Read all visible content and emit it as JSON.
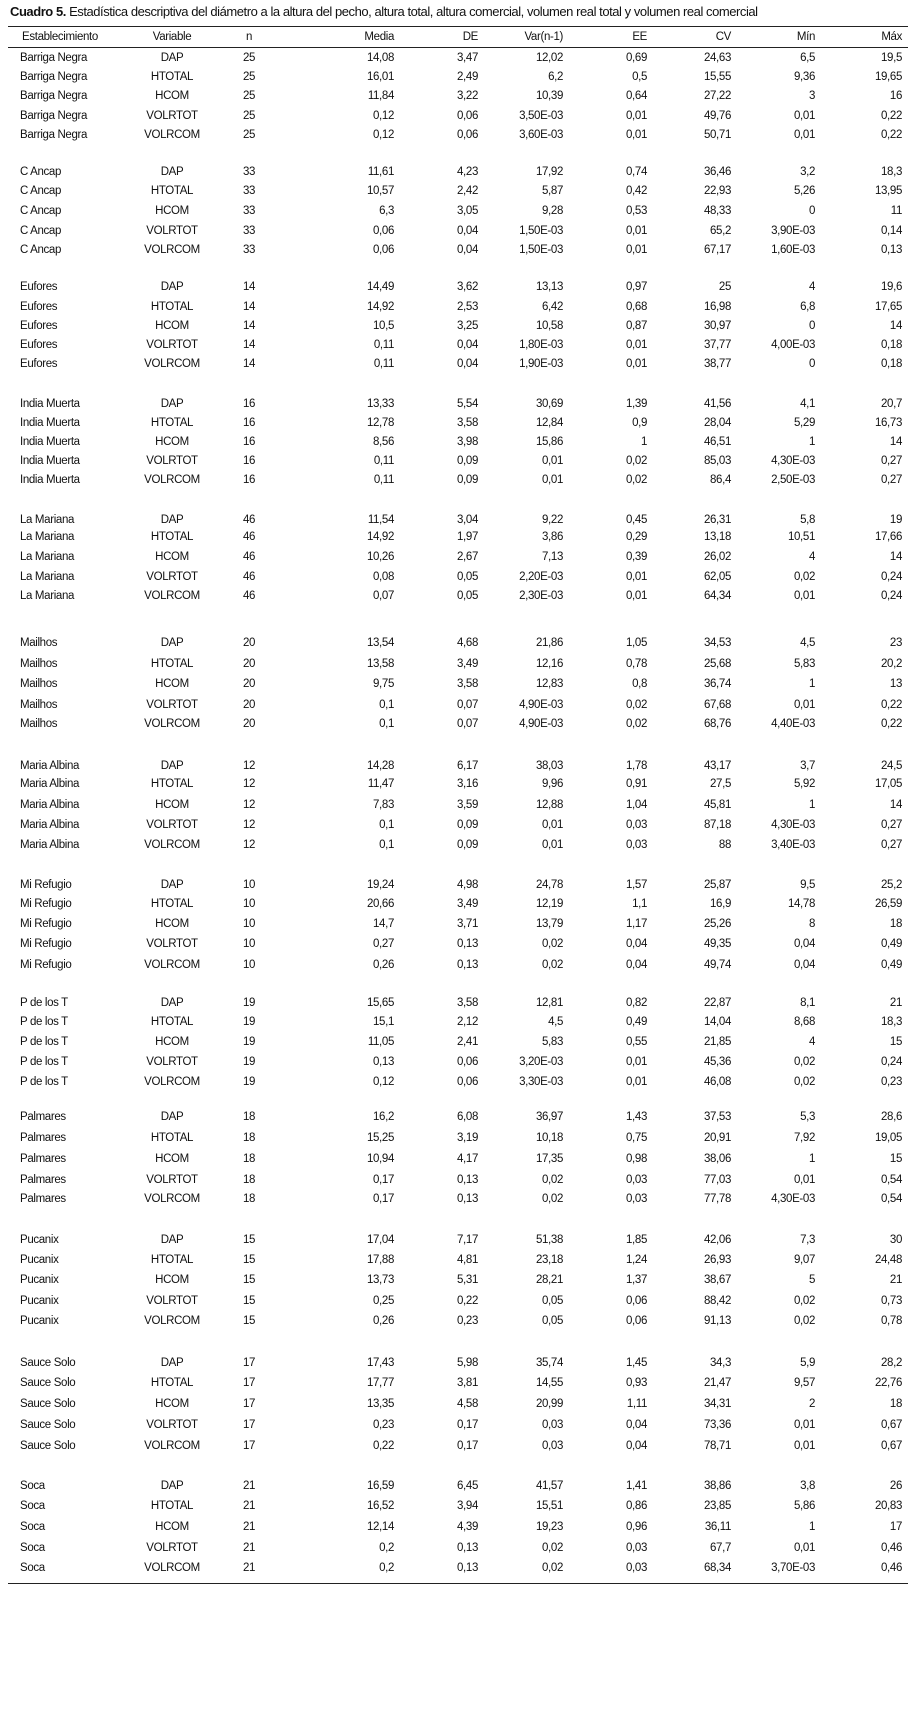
{
  "caption": {
    "label": "Cuadro 5.",
    "text": " Estadística descriptiva del diámetro a la altura del pecho, altura total, altura comercial, volumen real total y volumen real comercial"
  },
  "table": {
    "columns": [
      "Establecimiento",
      "Variable",
      "n",
      "Media",
      "DE",
      "Var(n-1)",
      "EE",
      "CV",
      "Mín",
      "Máx"
    ],
    "groups": [
      {
        "establecimiento": "Barriga Negra",
        "n": "25",
        "rows": [
          [
            "DAP",
            "14,08",
            "3,47",
            "12,02",
            "0,69",
            "24,63",
            "6,5",
            "19,5"
          ],
          [
            "HTOTAL",
            "16,01",
            "2,49",
            "6,2",
            "0,5",
            "15,55",
            "9,36",
            "19,65"
          ],
          [
            "HCOM",
            "11,84",
            "3,22",
            "10,39",
            "0,64",
            "27,22",
            "3",
            "16"
          ],
          [
            "VOLRTOT",
            "0,12",
            "0,06",
            "3,50E-03",
            "0,01",
            "49,76",
            "0,01",
            "0,22"
          ],
          [
            "VOLRCOM",
            "0,12",
            "0,06",
            "3,60E-03",
            "0,01",
            "50,71",
            "0,01",
            "0,22"
          ]
        ]
      },
      {
        "establecimiento": "C Ancap",
        "n": "33",
        "rows": [
          [
            "DAP",
            "11,61",
            "4,23",
            "17,92",
            "0,74",
            "36,46",
            "3,2",
            "18,3"
          ],
          [
            "HTOTAL",
            "10,57",
            "2,42",
            "5,87",
            "0,42",
            "22,93",
            "5,26",
            "13,95"
          ],
          [
            "HCOM",
            "6,3",
            "3,05",
            "9,28",
            "0,53",
            "48,33",
            "0",
            "11"
          ],
          [
            "VOLRTOT",
            "0,06",
            "0,04",
            "1,50E-03",
            "0,01",
            "65,2",
            "3,90E-03",
            "0,14"
          ],
          [
            "VOLRCOM",
            "0,06",
            "0,04",
            "1,50E-03",
            "0,01",
            "67,17",
            "1,60E-03",
            "0,13"
          ]
        ]
      },
      {
        "establecimiento": "Eufores",
        "n": "14",
        "rows": [
          [
            "DAP",
            "14,49",
            "3,62",
            "13,13",
            "0,97",
            "25",
            "4",
            "19,6"
          ],
          [
            "HTOTAL",
            "14,92",
            "2,53",
            "6,42",
            "0,68",
            "16,98",
            "6,8",
            "17,65"
          ],
          [
            "HCOM",
            "10,5",
            "3,25",
            "10,58",
            "0,87",
            "30,97",
            "0",
            "14"
          ],
          [
            "VOLRTOT",
            "0,11",
            "0,04",
            "1,80E-03",
            "0,01",
            "37,77",
            "4,00E-03",
            "0,18"
          ],
          [
            "VOLRCOM",
            "0,11",
            "0,04",
            "1,90E-03",
            "0,01",
            "38,77",
            "0",
            "0,18"
          ]
        ]
      },
      {
        "establecimiento": "India Muerta",
        "n": "16",
        "rows": [
          [
            "DAP",
            "13,33",
            "5,54",
            "30,69",
            "1,39",
            "41,56",
            "4,1",
            "20,7"
          ],
          [
            "HTOTAL",
            "12,78",
            "3,58",
            "12,84",
            "0,9",
            "28,04",
            "5,29",
            "16,73"
          ],
          [
            "HCOM",
            "8,56",
            "3,98",
            "15,86",
            "1",
            "46,51",
            "1",
            "14"
          ],
          [
            "VOLRTOT",
            "0,11",
            "0,09",
            "0,01",
            "0,02",
            "85,03",
            "4,30E-03",
            "0,27"
          ],
          [
            "VOLRCOM",
            "0,11",
            "0,09",
            "0,01",
            "0,02",
            "86,4",
            "2,50E-03",
            "0,27"
          ]
        ]
      },
      {
        "establecimiento": "La Mariana",
        "n": "46",
        "rows": [
          [
            "DAP",
            "11,54",
            "3,04",
            "9,22",
            "0,45",
            "26,31",
            "5,8",
            "19"
          ],
          [
            "HTOTAL",
            "14,92",
            "1,97",
            "3,86",
            "0,29",
            "13,18",
            "10,51",
            "17,66"
          ],
          [
            "HCOM",
            "10,26",
            "2,67",
            "7,13",
            "0,39",
            "26,02",
            "4",
            "14"
          ],
          [
            "VOLRTOT",
            "0,08",
            "0,05",
            "2,20E-03",
            "0,01",
            "62,05",
            "0,02",
            "0,24"
          ],
          [
            "VOLRCOM",
            "0,07",
            "0,05",
            "2,30E-03",
            "0,01",
            "64,34",
            "0,01",
            "0,24"
          ]
        ]
      },
      {
        "establecimiento": "Mailhos",
        "n": "20",
        "rows": [
          [
            "DAP",
            "13,54",
            "4,68",
            "21,86",
            "1,05",
            "34,53",
            "4,5",
            "23"
          ],
          [
            "HTOTAL",
            "13,58",
            "3,49",
            "12,16",
            "0,78",
            "25,68",
            "5,83",
            "20,2"
          ],
          [
            "HCOM",
            "9,75",
            "3,58",
            "12,83",
            "0,8",
            "36,74",
            "1",
            "13"
          ],
          [
            "VOLRTOT",
            "0,1",
            "0,07",
            "4,90E-03",
            "0,02",
            "67,68",
            "0,01",
            "0,22"
          ],
          [
            "VOLRCOM",
            "0,1",
            "0,07",
            "4,90E-03",
            "0,02",
            "68,76",
            "4,40E-03",
            "0,22"
          ]
        ]
      },
      {
        "establecimiento": "Maria Albina",
        "n": "12",
        "rows": [
          [
            "DAP",
            "14,28",
            "6,17",
            "38,03",
            "1,78",
            "43,17",
            "3,7",
            "24,5"
          ],
          [
            "HTOTAL",
            "11,47",
            "3,16",
            "9,96",
            "0,91",
            "27,5",
            "5,92",
            "17,05"
          ],
          [
            "HCOM",
            "7,83",
            "3,59",
            "12,88",
            "1,04",
            "45,81",
            "1",
            "14"
          ],
          [
            "VOLRTOT",
            "0,1",
            "0,09",
            "0,01",
            "0,03",
            "87,18",
            "4,30E-03",
            "0,27"
          ],
          [
            "VOLRCOM",
            "0,1",
            "0,09",
            "0,01",
            "0,03",
            "88",
            "3,40E-03",
            "0,27"
          ]
        ]
      },
      {
        "establecimiento": "Mi Refugio",
        "n": "10",
        "rows": [
          [
            "DAP",
            "19,24",
            "4,98",
            "24,78",
            "1,57",
            "25,87",
            "9,5",
            "25,2"
          ],
          [
            "HTOTAL",
            "20,66",
            "3,49",
            "12,19",
            "1,1",
            "16,9",
            "14,78",
            "26,59"
          ],
          [
            "HCOM",
            "14,7",
            "3,71",
            "13,79",
            "1,17",
            "25,26",
            "8",
            "18"
          ],
          [
            "VOLRTOT",
            "0,27",
            "0,13",
            "0,02",
            "0,04",
            "49,35",
            "0,04",
            "0,49"
          ],
          [
            "VOLRCOM",
            "0,26",
            "0,13",
            "0,02",
            "0,04",
            "49,74",
            "0,04",
            "0,49"
          ]
        ]
      },
      {
        "establecimiento": "P de los T",
        "n": "19",
        "rows": [
          [
            "DAP",
            "15,65",
            "3,58",
            "12,81",
            "0,82",
            "22,87",
            "8,1",
            "21"
          ],
          [
            "HTOTAL",
            "15,1",
            "2,12",
            "4,5",
            "0,49",
            "14,04",
            "8,68",
            "18,3"
          ],
          [
            "HCOM",
            "11,05",
            "2,41",
            "5,83",
            "0,55",
            "21,85",
            "4",
            "15"
          ],
          [
            "VOLRTOT",
            "0,13",
            "0,06",
            "3,20E-03",
            "0,01",
            "45,36",
            "0,02",
            "0,24"
          ],
          [
            "VOLRCOM",
            "0,12",
            "0,06",
            "3,30E-03",
            "0,01",
            "46,08",
            "0,02",
            "0,23"
          ]
        ]
      },
      {
        "establecimiento": "Palmares",
        "n": "18",
        "rows": [
          [
            "DAP",
            "16,2",
            "6,08",
            "36,97",
            "1,43",
            "37,53",
            "5,3",
            "28,6"
          ],
          [
            "HTOTAL",
            "15,25",
            "3,19",
            "10,18",
            "0,75",
            "20,91",
            "7,92",
            "19,05"
          ],
          [
            "HCOM",
            "10,94",
            "4,17",
            "17,35",
            "0,98",
            "38,06",
            "1",
            "15"
          ],
          [
            "VOLRTOT",
            "0,17",
            "0,13",
            "0,02",
            "0,03",
            "77,03",
            "0,01",
            "0,54"
          ],
          [
            "VOLRCOM",
            "0,17",
            "0,13",
            "0,02",
            "0,03",
            "77,78",
            "4,30E-03",
            "0,54"
          ]
        ]
      },
      {
        "establecimiento": "Pucanix",
        "n": "15",
        "rows": [
          [
            "DAP",
            "17,04",
            "7,17",
            "51,38",
            "1,85",
            "42,06",
            "7,3",
            "30"
          ],
          [
            "HTOTAL",
            "17,88",
            "4,81",
            "23,18",
            "1,24",
            "26,93",
            "9,07",
            "24,48"
          ],
          [
            "HCOM",
            "13,73",
            "5,31",
            "28,21",
            "1,37",
            "38,67",
            "5",
            "21"
          ],
          [
            "VOLRTOT",
            "0,25",
            "0,22",
            "0,05",
            "0,06",
            "88,42",
            "0,02",
            "0,73"
          ],
          [
            "VOLRCOM",
            "0,26",
            "0,23",
            "0,05",
            "0,06",
            "91,13",
            "0,02",
            "0,78"
          ]
        ]
      },
      {
        "establecimiento": "Sauce Solo",
        "n": "17",
        "rows": [
          [
            "DAP",
            "17,43",
            "5,98",
            "35,74",
            "1,45",
            "34,3",
            "5,9",
            "28,2"
          ],
          [
            "HTOTAL",
            "17,77",
            "3,81",
            "14,55",
            "0,93",
            "21,47",
            "9,57",
            "22,76"
          ],
          [
            "HCOM",
            "13,35",
            "4,58",
            "20,99",
            "1,11",
            "34,31",
            "2",
            "18"
          ],
          [
            "VOLRTOT",
            "0,23",
            "0,17",
            "0,03",
            "0,04",
            "73,36",
            "0,01",
            "0,67"
          ],
          [
            "VOLRCOM",
            "0,22",
            "0,17",
            "0,03",
            "0,04",
            "78,71",
            "0,01",
            "0,67"
          ]
        ]
      },
      {
        "establecimiento": "Soca",
        "n": "21",
        "rows": [
          [
            "DAP",
            "16,59",
            "6,45",
            "41,57",
            "1,41",
            "38,86",
            "3,8",
            "26"
          ],
          [
            "HTOTAL",
            "16,52",
            "3,94",
            "15,51",
            "0,86",
            "23,85",
            "5,86",
            "20,83"
          ],
          [
            "HCOM",
            "12,14",
            "4,39",
            "19,23",
            "0,96",
            "36,11",
            "1",
            "17"
          ],
          [
            "VOLRTOT",
            "0,2",
            "0,13",
            "0,02",
            "0,03",
            "67,7",
            "0,01",
            "0,46"
          ],
          [
            "VOLRCOM",
            "0,2",
            "0,13",
            "0,02",
            "0,03",
            "68,34",
            "3,70E-03",
            "0,46"
          ]
        ]
      }
    ]
  }
}
